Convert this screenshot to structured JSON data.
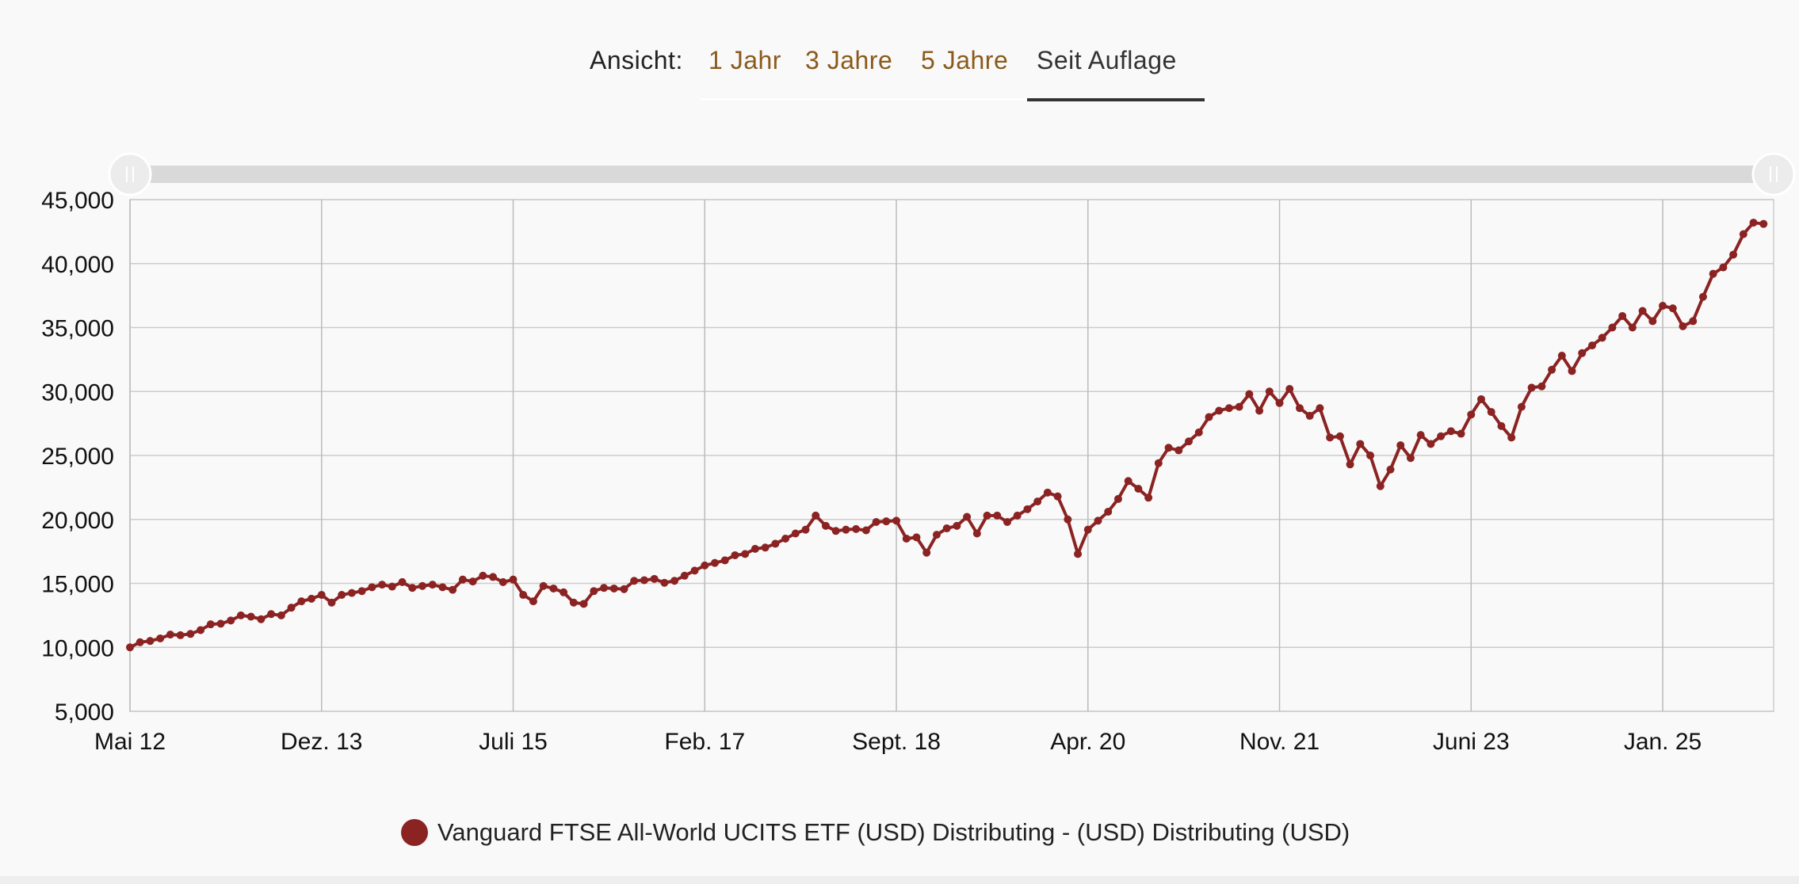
{
  "view_selector": {
    "label": "Ansicht:",
    "tabs": [
      {
        "label": "1 Jahr",
        "active": false
      },
      {
        "label": "3 Jahre",
        "active": false
      },
      {
        "label": "5 Jahre",
        "active": false
      },
      {
        "label": "Seit Auflage",
        "active": true
      }
    ]
  },
  "colors": {
    "series": "#8b2323",
    "tab_link": "#8a5a1c",
    "grid": "#cccccc",
    "slider": "#d9d9d9"
  },
  "chart_data": {
    "type": "line",
    "title": "",
    "xlabel": "",
    "ylabel": "",
    "ylim": [
      5000,
      45000
    ],
    "xlim": [
      "2012-05",
      "2025-12"
    ],
    "yticks": [
      5000,
      10000,
      15000,
      20000,
      25000,
      30000,
      35000,
      40000,
      45000
    ],
    "ytick_labels": [
      "5,000",
      "10,000",
      "15,000",
      "20,000",
      "25,000",
      "30,000",
      "35,000",
      "40,000",
      "45,000"
    ],
    "xticks": [
      "2012-05",
      "2013-12",
      "2015-07",
      "2017-02",
      "2018-09",
      "2020-04",
      "2021-11",
      "2023-06",
      "2025-01"
    ],
    "xtick_labels": [
      "Mai 12",
      "Dez. 13",
      "Juli 15",
      "Feb. 17",
      "Sept. 18",
      "Apr. 20",
      "Nov. 21",
      "Juni 23",
      "Jan. 25"
    ],
    "grid": true,
    "legend_position": "bottom-center",
    "series": [
      {
        "name": "Vanguard FTSE All-World UCITS ETF (USD) Distributing - (USD) Distributing (USD)",
        "color": "#8b2323",
        "start": "2012-05",
        "frequency": "monthly",
        "values": [
          10000,
          10400,
          10500,
          10700,
          11000,
          10950,
          11050,
          11350,
          11800,
          11850,
          12100,
          12500,
          12400,
          12200,
          12600,
          12500,
          13100,
          13600,
          13800,
          14100,
          13500,
          14100,
          14250,
          14400,
          14700,
          14900,
          14750,
          15100,
          14650,
          14800,
          14900,
          14700,
          14500,
          15300,
          15150,
          15600,
          15500,
          15100,
          15300,
          14100,
          13600,
          14800,
          14600,
          14300,
          13500,
          13400,
          14400,
          14650,
          14600,
          14550,
          15200,
          15250,
          15350,
          15050,
          15200,
          15600,
          16000,
          16400,
          16600,
          16800,
          17200,
          17300,
          17700,
          17800,
          18100,
          18500,
          18900,
          19200,
          20300,
          19500,
          19100,
          19200,
          19250,
          19150,
          19800,
          19850,
          19900,
          18500,
          18600,
          17400,
          18800,
          19300,
          19500,
          20200,
          18900,
          20300,
          20300,
          19800,
          20300,
          20800,
          21400,
          22100,
          21800,
          20000,
          17300,
          19200,
          19900,
          20600,
          21600,
          23000,
          22400,
          21700,
          24400,
          25600,
          25400,
          26100,
          26800,
          28000,
          28500,
          28700,
          28800,
          29800,
          28500,
          30000,
          29100,
          30200,
          28700,
          28100,
          28700,
          26400,
          26500,
          24300,
          25900,
          25000,
          22600,
          23900,
          25800,
          24800,
          26600,
          25900,
          26500,
          26900,
          26700,
          28200,
          29400,
          28400,
          27300,
          26400,
          28800,
          30300,
          30400,
          31700,
          32800,
          31600,
          33000,
          33600,
          34200,
          35000,
          35900,
          35000,
          36300,
          35500,
          36700,
          36500,
          35100,
          35500,
          37400,
          39200,
          39700,
          40700,
          42300,
          43200,
          43100
        ]
      }
    ]
  }
}
